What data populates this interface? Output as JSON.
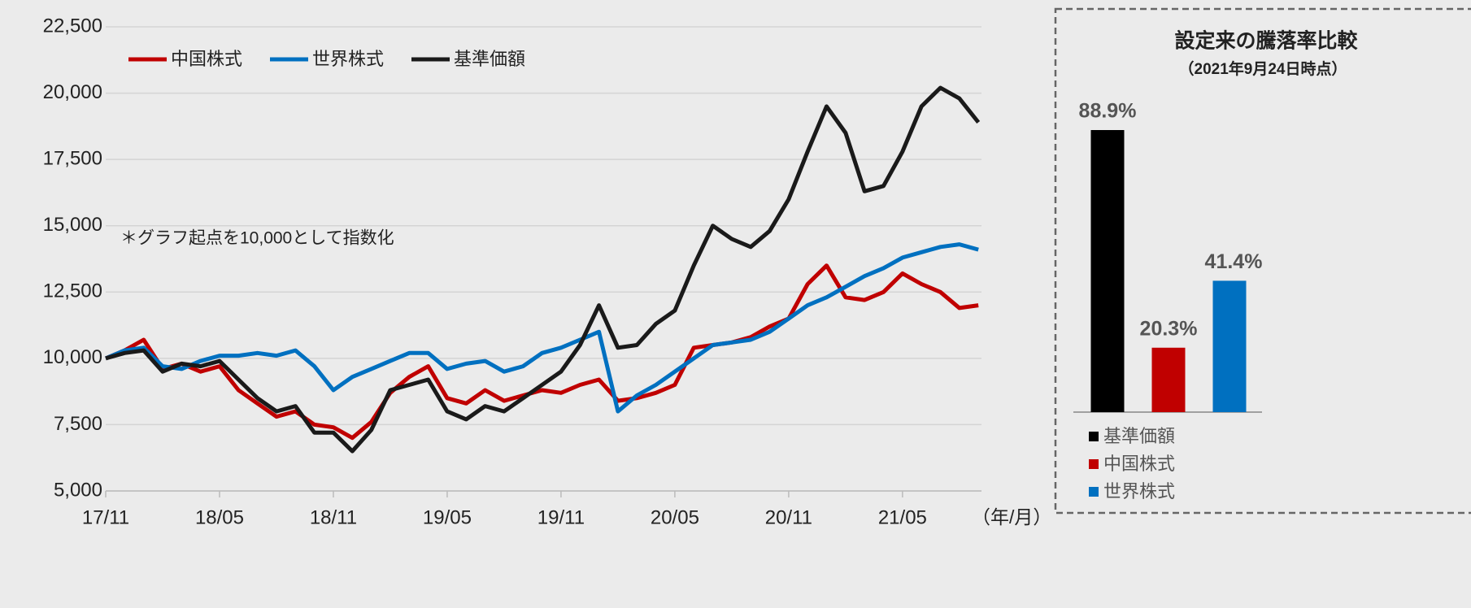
{
  "chart_data": [
    {
      "type": "line",
      "annotation": "＊グラフ起点を10,000として指数化",
      "x_label": "（年/月）",
      "categories": [
        "17/11",
        null,
        null,
        null,
        null,
        null,
        "18/05",
        null,
        null,
        null,
        null,
        null,
        "18/11",
        null,
        null,
        null,
        null,
        null,
        "19/05",
        null,
        null,
        null,
        null,
        null,
        "19/11",
        null,
        null,
        null,
        null,
        null,
        "20/05",
        null,
        null,
        null,
        null,
        null,
        "20/11",
        null,
        null,
        null,
        null,
        null,
        "21/05",
        null,
        null,
        null,
        null
      ],
      "series": [
        {
          "name": "中国株式",
          "color": "#c00000",
          "values": [
            10000,
            10300,
            10700,
            9600,
            9800,
            9500,
            9700,
            8800,
            8300,
            7800,
            8000,
            7500,
            7400,
            7000,
            7600,
            8700,
            9300,
            9700,
            8500,
            8300,
            8800,
            8400,
            8600,
            8800,
            8700,
            9000,
            9200,
            8400,
            8500,
            8700,
            9000,
            10400,
            10500,
            10600,
            10800,
            11200,
            11500,
            12800,
            13500,
            12300,
            12200,
            12500,
            13200,
            12800,
            12500,
            11900,
            12000
          ]
        },
        {
          "name": "世界株式",
          "color": "#0070c0",
          "values": [
            10000,
            10300,
            10400,
            9700,
            9600,
            9900,
            10100,
            10100,
            10200,
            10100,
            10300,
            9700,
            8800,
            9300,
            9600,
            9900,
            10200,
            10200,
            9600,
            9800,
            9900,
            9500,
            9700,
            10200,
            10400,
            10700,
            11000,
            8000,
            8600,
            9000,
            9500,
            10000,
            10500,
            10600,
            10700,
            11000,
            11500,
            12000,
            12300,
            12700,
            13100,
            13400,
            13800,
            14000,
            14200,
            14300,
            14100
          ]
        },
        {
          "name": "基準価額",
          "color": "#1a1a1a",
          "values": [
            10000,
            10200,
            10300,
            9500,
            9800,
            9700,
            9900,
            9200,
            8500,
            8000,
            8200,
            7200,
            7200,
            6500,
            7300,
            8800,
            9000,
            9200,
            8000,
            7700,
            8200,
            8000,
            8500,
            9000,
            9500,
            10500,
            12000,
            10400,
            10500,
            11300,
            11800,
            13500,
            15000,
            14500,
            14200,
            14800,
            16000,
            17800,
            19500,
            18500,
            16300,
            16500,
            17800,
            19500,
            20200,
            19800,
            18900
          ]
        }
      ],
      "ylim": [
        5000,
        22500
      ],
      "yticks": [
        {
          "value": 5000,
          "label": "5,000"
        },
        {
          "value": 7500,
          "label": "7,500"
        },
        {
          "value": 10000,
          "label": "10,000"
        },
        {
          "value": 12500,
          "label": "12,500"
        },
        {
          "value": 15000,
          "label": "15,000"
        },
        {
          "value": 17500,
          "label": "17,500"
        },
        {
          "value": 20000,
          "label": "20,000"
        },
        {
          "value": 22500,
          "label": "22,500"
        }
      ],
      "grid": true,
      "legend": "top-left"
    },
    {
      "type": "bar",
      "title": "設定来の騰落率比較",
      "subtitle": "（2021年9月24日時点）",
      "categories": [
        "基準価額",
        "中国株式",
        "世界株式"
      ],
      "values": [
        88.9,
        20.3,
        41.4
      ],
      "value_labels": [
        "88.9%",
        "20.3%",
        "41.4%"
      ],
      "colors": [
        "#000000",
        "#c00000",
        "#0070c0"
      ]
    }
  ]
}
